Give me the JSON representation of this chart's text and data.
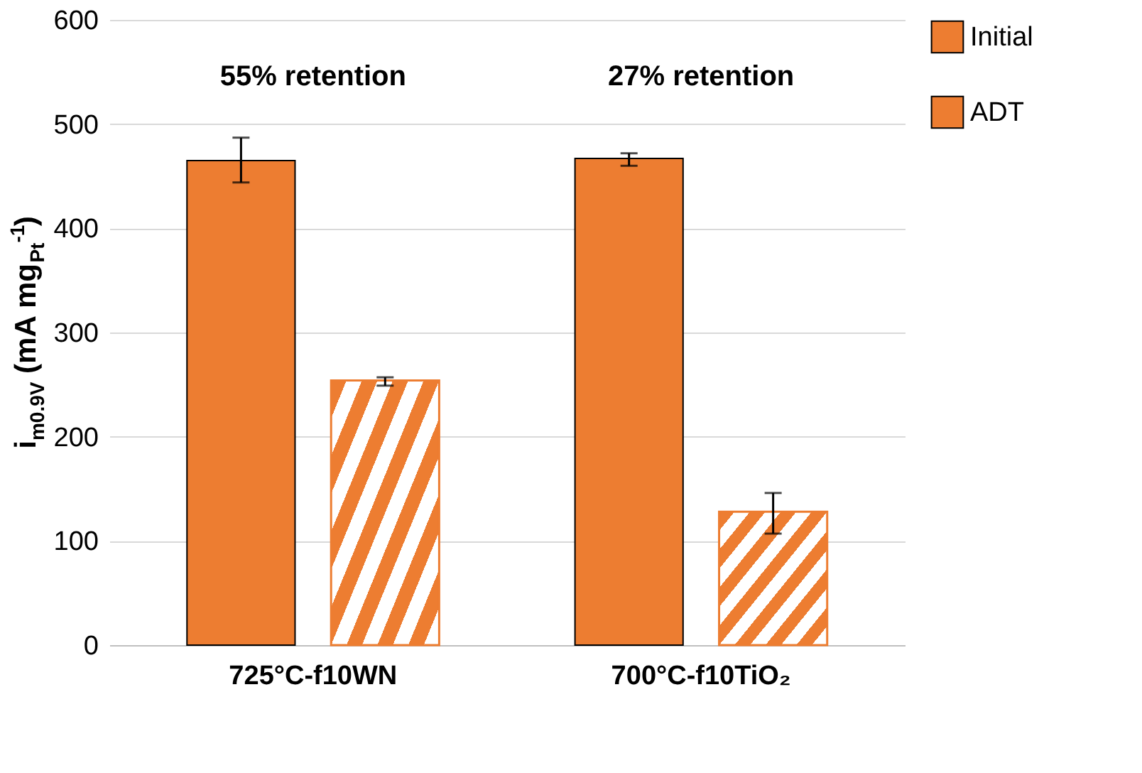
{
  "chart_data": {
    "type": "bar",
    "categories": [
      "725°C-f10WN",
      "700°C-f10TiO₂"
    ],
    "series": [
      {
        "name": "Initial",
        "color": "#ed7d31",
        "values": [
          465,
          467
        ],
        "errors": [
          [
            444,
            487
          ],
          [
            460,
            472
          ]
        ]
      },
      {
        "name": "ADT",
        "color": "#ed7d31",
        "values": [
          254,
          128
        ],
        "errors": [
          [
            249,
            257
          ],
          [
            107,
            146
          ]
        ]
      }
    ],
    "ylabel": "i$_{m0.9V}$ (mA mg$_{Pt}$$^{-1}$)",
    "ylim": [
      0,
      600
    ],
    "yticks": [
      0,
      100,
      200,
      300,
      400,
      500,
      600
    ],
    "annotations": [
      "55% retention",
      "27% retention"
    ],
    "grid": "y",
    "legend": "right"
  }
}
